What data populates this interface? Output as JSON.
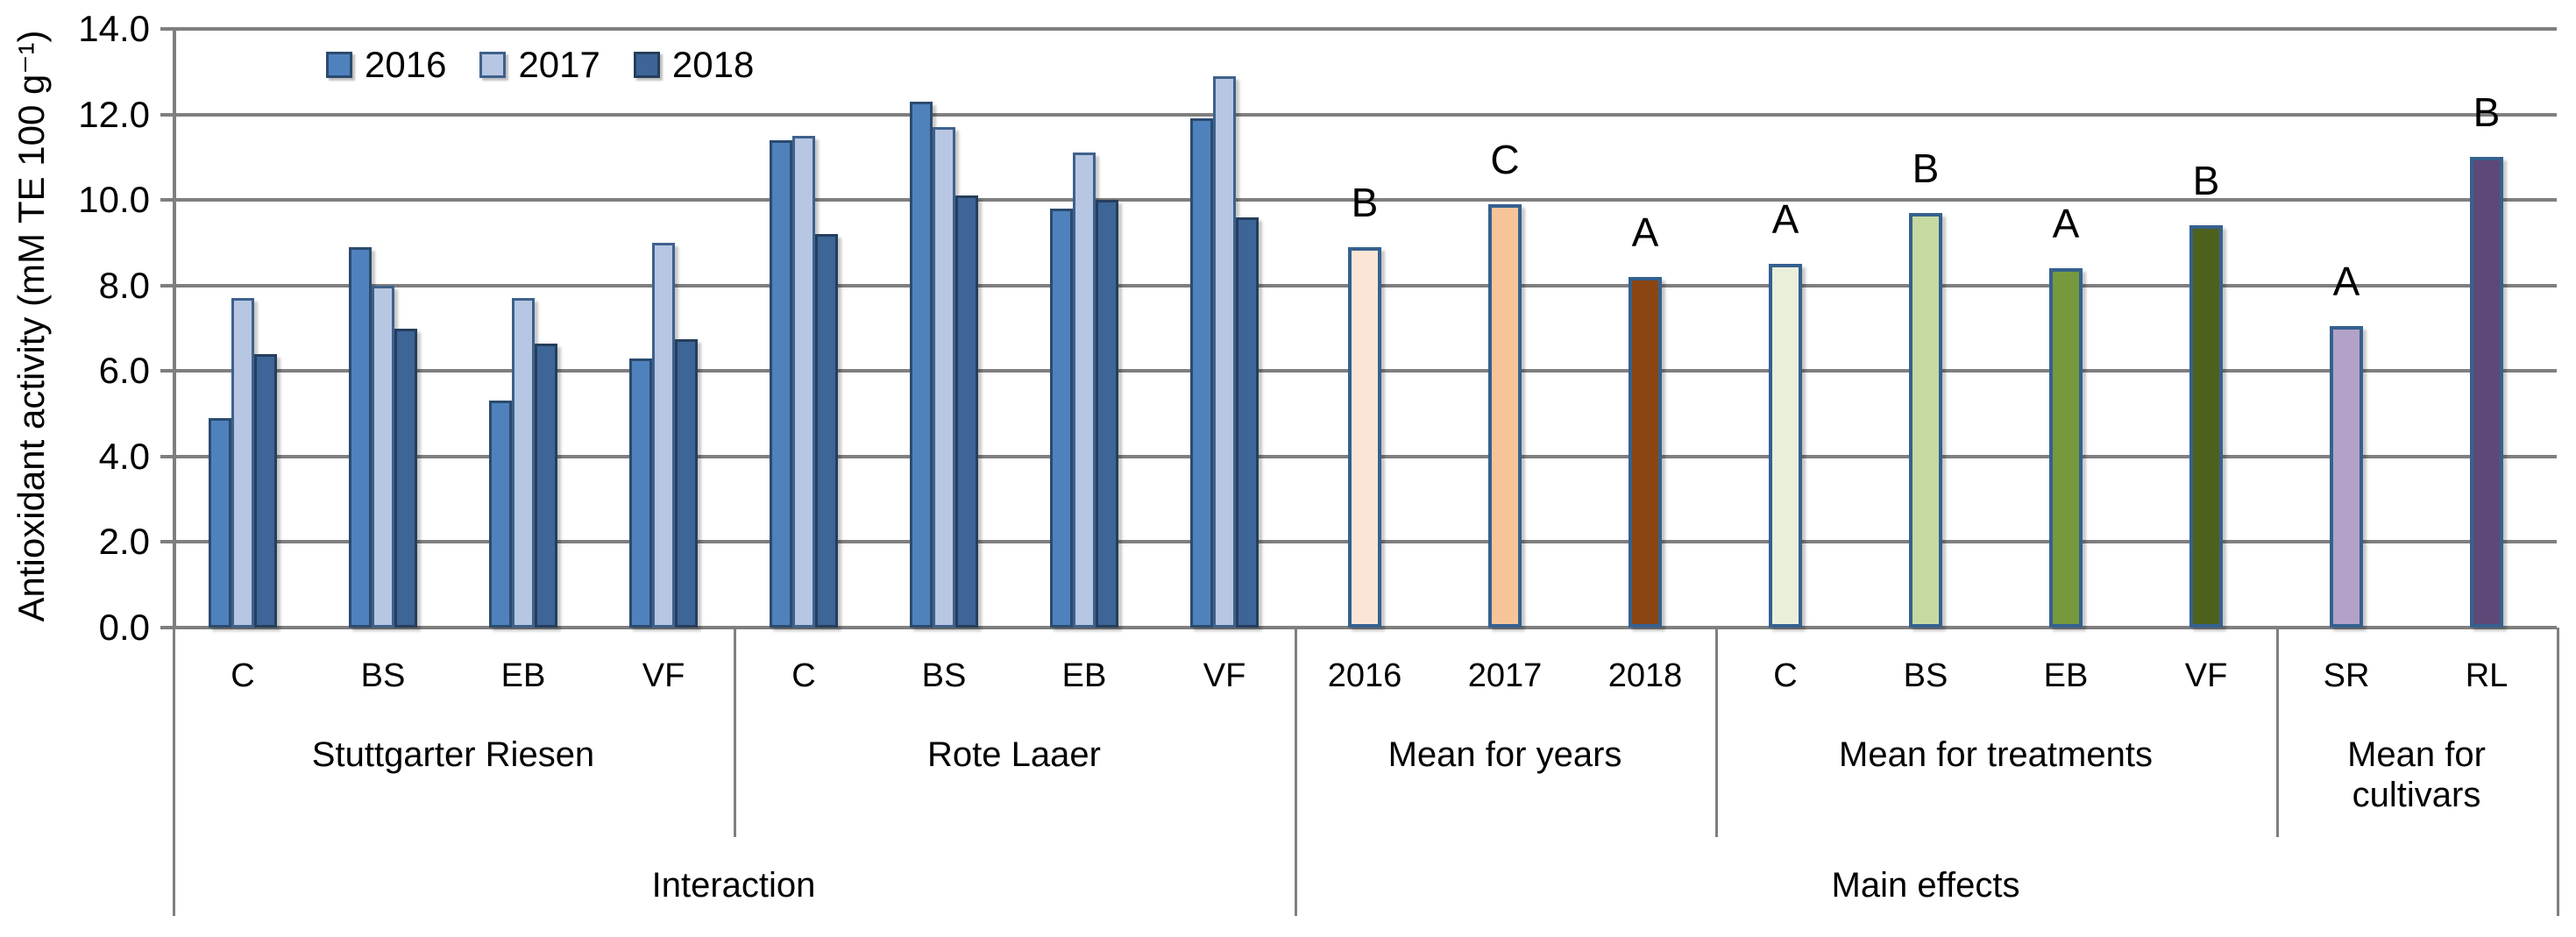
{
  "chart_data": {
    "type": "bar",
    "title": "",
    "ylabel": "Antioxidant activity (mM TE 100 g⁻¹)",
    "ylim": [
      0,
      14
    ],
    "ytick_step": 2,
    "ytick_labels": [
      "0.0",
      "2.0",
      "4.0",
      "6.0",
      "8.0",
      "10.0",
      "12.0",
      "14.0"
    ],
    "grid": true,
    "grid_color": "#7F7F7F",
    "legend_position": "top-left-inside",
    "legend": [
      {
        "label": "2016",
        "fill": "#4F81BD",
        "border": "#2B4B6F"
      },
      {
        "label": "2017",
        "fill": "#B7C6E2",
        "border": "#3E618C"
      },
      {
        "label": "2018",
        "fill": "#3D6597",
        "border": "#253E5C"
      }
    ],
    "series_years": [
      "2016",
      "2017",
      "2018"
    ],
    "sections": [
      {
        "name": "Stuttgarter Riesen",
        "axis_group": "Interaction",
        "kind": "grouped",
        "groups": [
          {
            "label": "C",
            "values": [
              4.9,
              7.7,
              6.4
            ]
          },
          {
            "label": "BS",
            "values": [
              8.9,
              8.0,
              7.0
            ]
          },
          {
            "label": "EB",
            "values": [
              5.3,
              7.7,
              6.65
            ]
          },
          {
            "label": "VF",
            "values": [
              6.3,
              9.0,
              6.75
            ]
          }
        ]
      },
      {
        "name": "Rote Laaer",
        "axis_group": "Interaction",
        "kind": "grouped",
        "groups": [
          {
            "label": "C",
            "values": [
              11.4,
              11.5,
              9.2
            ]
          },
          {
            "label": "BS",
            "values": [
              12.3,
              11.7,
              10.1
            ]
          },
          {
            "label": "EB",
            "values": [
              9.8,
              11.1,
              10.0
            ]
          },
          {
            "label": "VF",
            "values": [
              11.9,
              12.9,
              9.6
            ]
          }
        ]
      },
      {
        "name": "Mean for years",
        "axis_group": "Main effects",
        "kind": "single",
        "bars": [
          {
            "label": "2016",
            "value": 8.9,
            "letter": "B",
            "fill": "#FBE5D6",
            "border": "#35618F"
          },
          {
            "label": "2017",
            "value": 9.9,
            "letter": "C",
            "fill": "#F7C499",
            "border": "#35618F"
          },
          {
            "label": "2018",
            "value": 8.2,
            "letter": "A",
            "fill": "#8B4512",
            "border": "#35618F"
          }
        ]
      },
      {
        "name": "Mean for treatments",
        "axis_group": "Main effects",
        "kind": "single",
        "bars": [
          {
            "label": "C",
            "value": 8.5,
            "letter": "A",
            "fill": "#EAEFDC",
            "border": "#35618F"
          },
          {
            "label": "BS",
            "value": 9.7,
            "letter": "B",
            "fill": "#C6D9A1",
            "border": "#35618F"
          },
          {
            "label": "EB",
            "value": 8.4,
            "letter": "A",
            "fill": "#77993D",
            "border": "#35618F"
          },
          {
            "label": "VF",
            "value": 9.4,
            "letter": "B",
            "fill": "#4D611D",
            "border": "#35618F"
          }
        ]
      },
      {
        "name": "Mean for cultivars",
        "axis_group": "Main effects",
        "kind": "single",
        "bars": [
          {
            "label": "SR",
            "value": 7.05,
            "letter": "A",
            "fill": "#B3A2C7",
            "border": "#35618F"
          },
          {
            "label": "RL",
            "value": 11.0,
            "letter": "B",
            "fill": "#5E4877",
            "border": "#35618F"
          }
        ]
      }
    ],
    "axis_group_labels": [
      "Interaction",
      "Main effects"
    ]
  }
}
